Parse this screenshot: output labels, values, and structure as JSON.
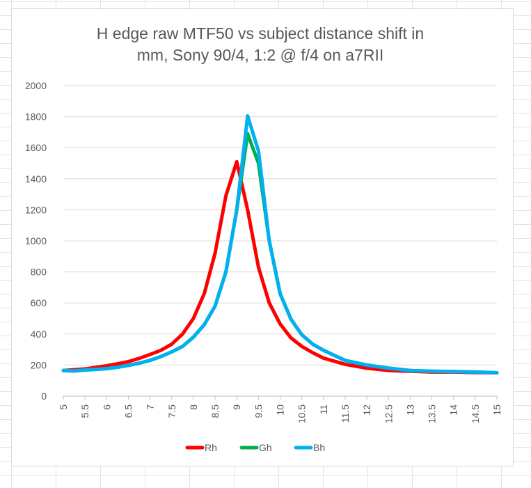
{
  "chart_data": {
    "type": "line",
    "title_lines": [
      "H edge raw MTF50 vs subject distance shift in",
      "mm, Sony 90/4, 1:2 @ f/4 on a7RII"
    ],
    "xlabel": "",
    "ylabel": "",
    "ylim": [
      0,
      2000
    ],
    "y_ticks": [
      0,
      200,
      400,
      600,
      800,
      1000,
      1200,
      1400,
      1600,
      1800,
      2000
    ],
    "x_range": [
      5,
      15
    ],
    "x_tick_labels": [
      "5",
      "5.5",
      "6",
      "6.5",
      "7",
      "7.5",
      "8",
      "8.5",
      "9",
      "9.5",
      "10",
      "10.5",
      "11",
      "11.5",
      "12",
      "12.5",
      "13",
      "13.5",
      "14",
      "14.5",
      "15"
    ],
    "grid": "horizontal",
    "legend_position": "bottom",
    "x": [
      5,
      5.25,
      5.5,
      5.75,
      6,
      6.25,
      6.5,
      6.75,
      7,
      7.25,
      7.5,
      7.75,
      8,
      8.25,
      8.5,
      8.75,
      9,
      9.25,
      9.5,
      9.75,
      10,
      10.25,
      10.5,
      10.75,
      11,
      11.5,
      12,
      12.5,
      13,
      13.5,
      14,
      14.5,
      15
    ],
    "series": [
      {
        "name": "Rh",
        "color": "#ff0000",
        "values": [
          165,
          170,
          175,
          185,
          195,
          208,
          222,
          243,
          268,
          295,
          335,
          400,
          500,
          660,
          920,
          1290,
          1510,
          1200,
          830,
          600,
          465,
          375,
          320,
          280,
          245,
          205,
          180,
          165,
          160,
          155,
          155,
          152,
          150
        ]
      },
      {
        "name": "Gh",
        "color": "#00b050",
        "values": [
          165,
          162,
          168,
          172,
          177,
          186,
          198,
          212,
          230,
          255,
          285,
          320,
          380,
          460,
          580,
          800,
          1200,
          1690,
          1500,
          1000,
          660,
          495,
          395,
          335,
          295,
          230,
          200,
          180,
          165,
          160,
          158,
          155,
          150
        ]
      },
      {
        "name": "Bh",
        "color": "#00b0f0",
        "values": [
          165,
          162,
          168,
          172,
          177,
          186,
          198,
          212,
          230,
          255,
          285,
          320,
          380,
          460,
          580,
          800,
          1200,
          1805,
          1580,
          1000,
          660,
          495,
          395,
          335,
          295,
          230,
          200,
          180,
          165,
          160,
          158,
          155,
          150
        ]
      }
    ]
  }
}
